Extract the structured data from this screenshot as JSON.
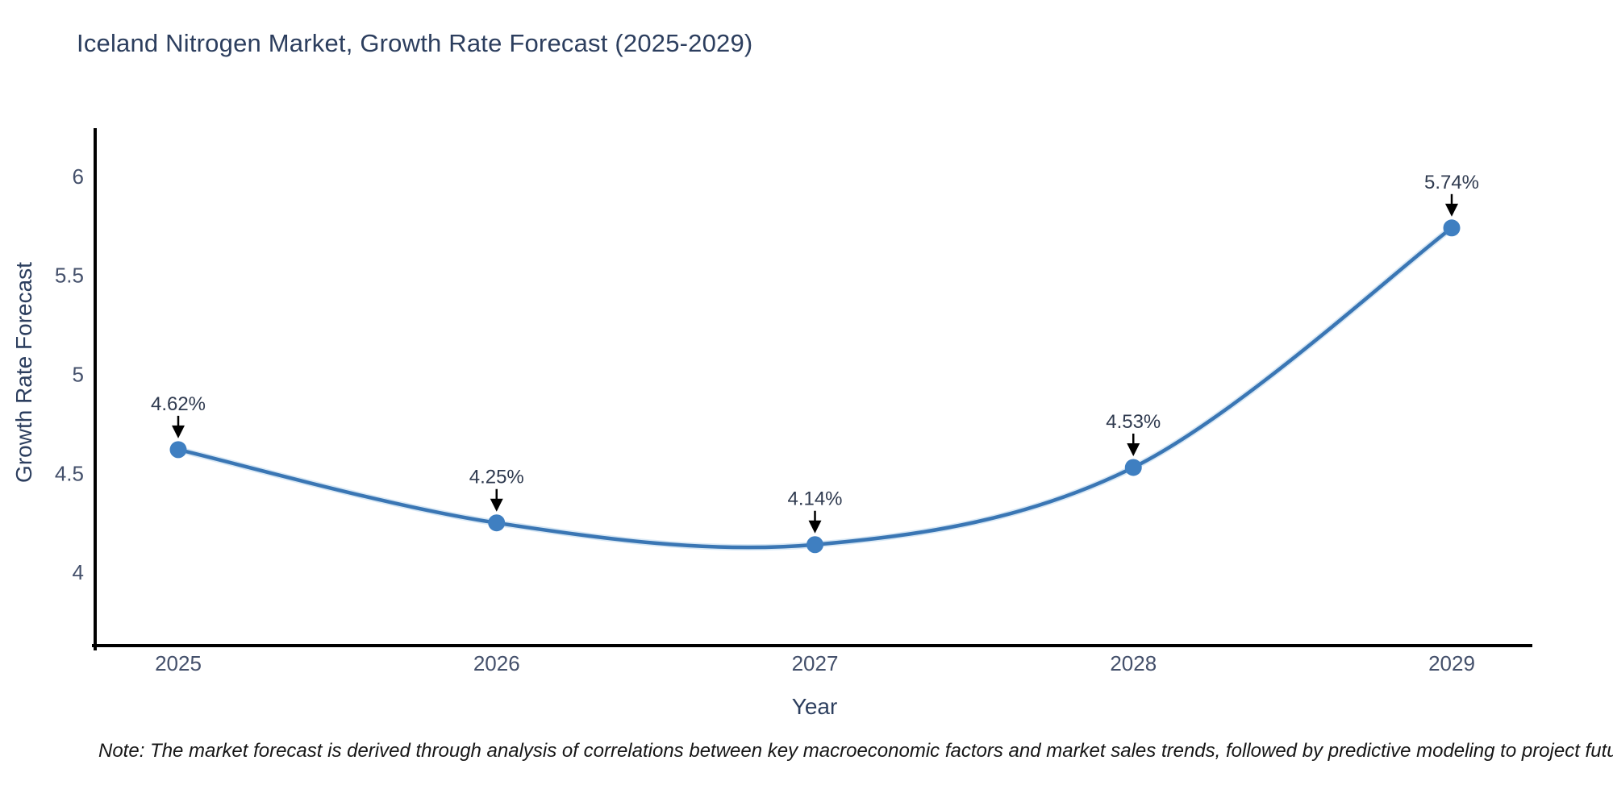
{
  "title": "Iceland Nitrogen Market, Growth Rate Forecast (2025-2029)",
  "note": "Note: The market forecast is derived through analysis of correlations between key macroeconomic factors and market sales trends, followed by predictive modeling to project future sales",
  "chart_data": {
    "type": "line",
    "line_shape": "spline",
    "title": "Iceland Nitrogen Market, Growth Rate Forecast (2025-2029)",
    "xlabel": "Year",
    "ylabel": "Growth Rate Forecast",
    "categories": [
      "2025",
      "2026",
      "2027",
      "2028",
      "2029"
    ],
    "values": [
      4.62,
      4.25,
      4.14,
      4.53,
      5.74
    ],
    "point_labels": [
      "4.62%",
      "4.25%",
      "4.14%",
      "4.53%",
      "5.74%"
    ],
    "yticks": [
      4,
      4.5,
      5,
      5.5,
      6
    ],
    "ytick_labels": [
      "4",
      "4.5",
      "5",
      "5.5",
      "6"
    ],
    "ylim": [
      3.63,
      6.24
    ],
    "grid": false,
    "legend": "none",
    "colors": {
      "line": "#3a76b4",
      "line_halo": "#a9cde9",
      "marker": "#3f7fc1",
      "axis": "#000000",
      "tick_text": "#44506b",
      "title_text": "#2c3e5e",
      "annotation_text": "#2f3a4f",
      "arrow": "#000000",
      "background": "#ffffff"
    }
  }
}
